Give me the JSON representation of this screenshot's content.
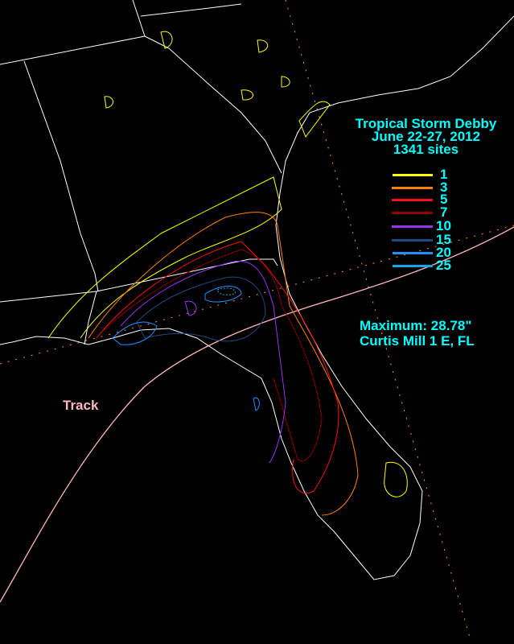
{
  "title": {
    "line1": "Tropical Storm Debby",
    "line2": "June 22-27, 2012",
    "line3": "1341 sites"
  },
  "legend": [
    {
      "label": "1",
      "color": "#ffff00"
    },
    {
      "label": "3",
      "color": "#ff8000"
    },
    {
      "label": "5",
      "color": "#ff1010"
    },
    {
      "label": "7",
      "color": "#8b0000"
    },
    {
      "label": "10",
      "color": "#9933ee"
    },
    {
      "label": "15",
      "color": "#1f4a80"
    },
    {
      "label": "20",
      "color": "#2090ff"
    },
    {
      "label": "25",
      "color": "#10a8e8"
    }
  ],
  "maximum": {
    "line1": "Maximum:  28.78\"",
    "line2": "Curtis Mill 1 E, FL"
  },
  "track_label": "Track",
  "colors": {
    "text": "#00ffff",
    "track": "#ffb6c1",
    "boundaries": "#ffffff",
    "gridlines": "#ff9900",
    "background": "#000000"
  }
}
